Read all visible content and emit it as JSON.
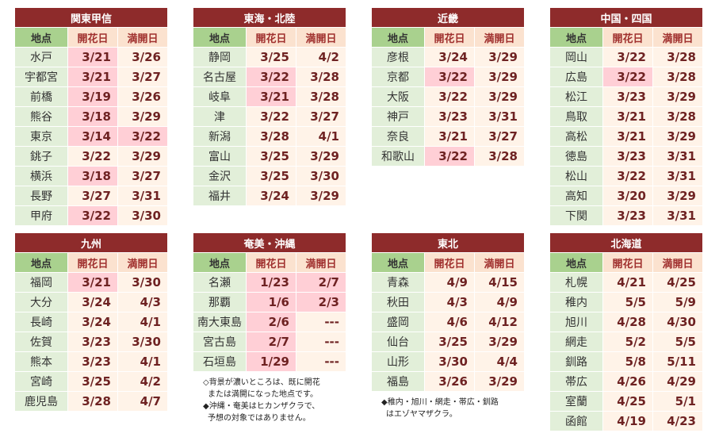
{
  "columns": [
    "地点",
    "開花日",
    "満開日"
  ],
  "tables": [
    {
      "title": "関東甲信",
      "rows": [
        {
          "name": "水戸",
          "bloom": "3/21",
          "full": "3/26",
          "bloom_hl": true,
          "full_hl": false
        },
        {
          "name": "宇都宮",
          "bloom": "3/21",
          "full": "3/27",
          "bloom_hl": true,
          "full_hl": false
        },
        {
          "name": "前橋",
          "bloom": "3/19",
          "full": "3/26",
          "bloom_hl": true,
          "full_hl": false
        },
        {
          "name": "熊谷",
          "bloom": "3/18",
          "full": "3/29",
          "bloom_hl": true,
          "full_hl": false
        },
        {
          "name": "東京",
          "bloom": "3/14",
          "full": "3/22",
          "bloom_hl": true,
          "full_hl": true
        },
        {
          "name": "銚子",
          "bloom": "3/22",
          "full": "3/29",
          "bloom_hl": false,
          "full_hl": false
        },
        {
          "name": "横浜",
          "bloom": "3/18",
          "full": "3/27",
          "bloom_hl": true,
          "full_hl": false
        },
        {
          "name": "長野",
          "bloom": "3/27",
          "full": "3/31",
          "bloom_hl": false,
          "full_hl": false
        },
        {
          "name": "甲府",
          "bloom": "3/22",
          "full": "3/30",
          "bloom_hl": true,
          "full_hl": false
        }
      ]
    },
    {
      "title": "東海・北陸",
      "rows": [
        {
          "name": "静岡",
          "bloom": "3/25",
          "full": "4/2",
          "bloom_hl": false,
          "full_hl": false
        },
        {
          "name": "名古屋",
          "bloom": "3/22",
          "full": "3/28",
          "bloom_hl": true,
          "full_hl": false
        },
        {
          "name": "岐阜",
          "bloom": "3/21",
          "full": "3/28",
          "bloom_hl": true,
          "full_hl": false
        },
        {
          "name": "津",
          "bloom": "3/22",
          "full": "3/27",
          "bloom_hl": false,
          "full_hl": false
        },
        {
          "name": "新潟",
          "bloom": "3/28",
          "full": "4/1",
          "bloom_hl": false,
          "full_hl": false
        },
        {
          "name": "富山",
          "bloom": "3/25",
          "full": "3/29",
          "bloom_hl": false,
          "full_hl": false
        },
        {
          "name": "金沢",
          "bloom": "3/25",
          "full": "3/30",
          "bloom_hl": false,
          "full_hl": false
        },
        {
          "name": "福井",
          "bloom": "3/24",
          "full": "3/29",
          "bloom_hl": false,
          "full_hl": false
        }
      ]
    },
    {
      "title": "近畿",
      "rows": [
        {
          "name": "彦根",
          "bloom": "3/24",
          "full": "3/29",
          "bloom_hl": false,
          "full_hl": false
        },
        {
          "name": "京都",
          "bloom": "3/22",
          "full": "3/29",
          "bloom_hl": true,
          "full_hl": false
        },
        {
          "name": "大阪",
          "bloom": "3/22",
          "full": "3/29",
          "bloom_hl": false,
          "full_hl": false
        },
        {
          "name": "神戸",
          "bloom": "3/23",
          "full": "3/31",
          "bloom_hl": false,
          "full_hl": false
        },
        {
          "name": "奈良",
          "bloom": "3/21",
          "full": "3/27",
          "bloom_hl": false,
          "full_hl": false
        },
        {
          "name": "和歌山",
          "bloom": "3/22",
          "full": "3/28",
          "bloom_hl": true,
          "full_hl": false
        }
      ]
    },
    {
      "title": "中国・四国",
      "rows": [
        {
          "name": "岡山",
          "bloom": "3/22",
          "full": "3/28",
          "bloom_hl": false,
          "full_hl": false
        },
        {
          "name": "広島",
          "bloom": "3/22",
          "full": "3/28",
          "bloom_hl": true,
          "full_hl": false
        },
        {
          "name": "松江",
          "bloom": "3/23",
          "full": "3/29",
          "bloom_hl": false,
          "full_hl": false
        },
        {
          "name": "鳥取",
          "bloom": "3/21",
          "full": "3/28",
          "bloom_hl": false,
          "full_hl": false
        },
        {
          "name": "高松",
          "bloom": "3/21",
          "full": "3/29",
          "bloom_hl": false,
          "full_hl": false
        },
        {
          "name": "徳島",
          "bloom": "3/23",
          "full": "3/31",
          "bloom_hl": false,
          "full_hl": false
        },
        {
          "name": "松山",
          "bloom": "3/22",
          "full": "3/31",
          "bloom_hl": false,
          "full_hl": false
        },
        {
          "name": "高知",
          "bloom": "3/20",
          "full": "3/29",
          "bloom_hl": false,
          "full_hl": false
        },
        {
          "name": "下関",
          "bloom": "3/23",
          "full": "3/31",
          "bloom_hl": false,
          "full_hl": false
        }
      ]
    },
    {
      "title": "九州",
      "rows": [
        {
          "name": "福岡",
          "bloom": "3/21",
          "full": "3/30",
          "bloom_hl": true,
          "full_hl": false
        },
        {
          "name": "大分",
          "bloom": "3/24",
          "full": "4/3",
          "bloom_hl": false,
          "full_hl": false
        },
        {
          "name": "長崎",
          "bloom": "3/24",
          "full": "4/1",
          "bloom_hl": false,
          "full_hl": false
        },
        {
          "name": "佐賀",
          "bloom": "3/23",
          "full": "3/30",
          "bloom_hl": false,
          "full_hl": false
        },
        {
          "name": "熊本",
          "bloom": "3/23",
          "full": "4/1",
          "bloom_hl": false,
          "full_hl": false
        },
        {
          "name": "宮崎",
          "bloom": "3/25",
          "full": "4/2",
          "bloom_hl": false,
          "full_hl": false
        },
        {
          "name": "鹿児島",
          "bloom": "3/28",
          "full": "4/7",
          "bloom_hl": false,
          "full_hl": false
        }
      ]
    },
    {
      "title": "奄美・沖縄",
      "rows": [
        {
          "name": "名瀬",
          "bloom": "1/23",
          "full": "2/7",
          "bloom_hl": true,
          "full_hl": true
        },
        {
          "name": "那覇",
          "bloom": "1/6",
          "full": "2/3",
          "bloom_hl": true,
          "full_hl": true
        },
        {
          "name": "南大東島",
          "bloom": "2/6",
          "full": "---",
          "bloom_hl": true,
          "full_hl": false
        },
        {
          "name": "宮古島",
          "bloom": "2/7",
          "full": "---",
          "bloom_hl": true,
          "full_hl": false
        },
        {
          "name": "石垣島",
          "bloom": "1/29",
          "full": "---",
          "bloom_hl": true,
          "full_hl": false
        }
      ],
      "notes": [
        "◇背景が濃いところは、既に開花",
        "または満開になった地点です。",
        "◆沖縄・奄美はヒカンザクラで、",
        "予想の対象ではありません。"
      ]
    },
    {
      "title": "東北",
      "rows": [
        {
          "name": "青森",
          "bloom": "4/9",
          "full": "4/15",
          "bloom_hl": false,
          "full_hl": false
        },
        {
          "name": "秋田",
          "bloom": "4/3",
          "full": "4/9",
          "bloom_hl": false,
          "full_hl": false
        },
        {
          "name": "盛岡",
          "bloom": "4/6",
          "full": "4/12",
          "bloom_hl": false,
          "full_hl": false
        },
        {
          "name": "仙台",
          "bloom": "3/25",
          "full": "3/29",
          "bloom_hl": false,
          "full_hl": false
        },
        {
          "name": "山形",
          "bloom": "3/30",
          "full": "4/4",
          "bloom_hl": false,
          "full_hl": false
        },
        {
          "name": "福島",
          "bloom": "3/26",
          "full": "3/29",
          "bloom_hl": false,
          "full_hl": false
        }
      ],
      "notes": [
        "◆稚内・旭川・網走・帯広・釧路",
        "はエゾヤマザクラ。"
      ]
    },
    {
      "title": "北海道",
      "rows": [
        {
          "name": "札幌",
          "bloom": "4/21",
          "full": "4/25",
          "bloom_hl": false,
          "full_hl": false
        },
        {
          "name": "稚内",
          "bloom": "5/5",
          "full": "5/9",
          "bloom_hl": false,
          "full_hl": false
        },
        {
          "name": "旭川",
          "bloom": "4/28",
          "full": "4/30",
          "bloom_hl": false,
          "full_hl": false
        },
        {
          "name": "網走",
          "bloom": "5/2",
          "full": "5/5",
          "bloom_hl": false,
          "full_hl": false
        },
        {
          "name": "釧路",
          "bloom": "5/8",
          "full": "5/11",
          "bloom_hl": false,
          "full_hl": false
        },
        {
          "name": "帯広",
          "bloom": "4/26",
          "full": "4/29",
          "bloom_hl": false,
          "full_hl": false
        },
        {
          "name": "室蘭",
          "bloom": "4/25",
          "full": "5/1",
          "bloom_hl": false,
          "full_hl": false
        },
        {
          "name": "函館",
          "bloom": "4/19",
          "full": "4/23",
          "bloom_hl": false,
          "full_hl": false
        }
      ]
    }
  ]
}
